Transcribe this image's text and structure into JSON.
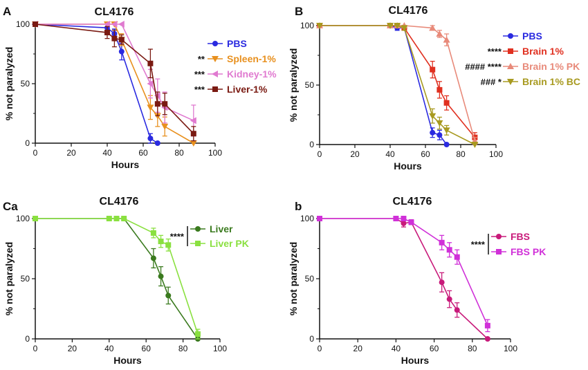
{
  "chart_data": [
    {
      "type": "line",
      "panel_label": "A",
      "title": "CL4176",
      "xlabel": "Hours",
      "ylabel": "% not paralyzed",
      "xlim": [
        0,
        100
      ],
      "ylim": [
        0,
        100
      ],
      "xticks": [
        0,
        20,
        40,
        60,
        80,
        100
      ],
      "yticks": [
        0,
        50,
        100
      ],
      "legend_position": "right",
      "series": [
        {
          "name": "PBS",
          "color": "#2a2ae0",
          "marker": "circle",
          "significance": "",
          "x": [
            0,
            40,
            44,
            48,
            64,
            68
          ],
          "y": [
            100,
            97,
            92,
            77,
            4,
            0
          ],
          "err": [
            0,
            3,
            4,
            7,
            4,
            0
          ]
        },
        {
          "name": "Spleen-1%",
          "color": "#e8901e",
          "marker": "tri-down",
          "significance": "**",
          "x": [
            0,
            40,
            44,
            48,
            64,
            68,
            72,
            88
          ],
          "y": [
            100,
            100,
            100,
            87,
            30,
            23,
            14,
            0
          ],
          "err": [
            0,
            0,
            0,
            5,
            10,
            9,
            8,
            0
          ]
        },
        {
          "name": "Kidney-1%",
          "color": "#e07ad0",
          "marker": "tri-left",
          "significance": "***",
          "x": [
            0,
            40,
            44,
            48,
            64,
            68,
            72,
            88
          ],
          "y": [
            100,
            100,
            100,
            100,
            50,
            40,
            30,
            19
          ],
          "err": [
            0,
            0,
            0,
            0,
            12,
            14,
            13,
            13
          ]
        },
        {
          "name": "Liver-1%",
          "color": "#7a1a12",
          "marker": "square",
          "significance": "***",
          "x": [
            0,
            40,
            44,
            48,
            64,
            68,
            72,
            88
          ],
          "y": [
            100,
            93,
            88,
            87,
            67,
            33,
            33,
            8
          ],
          "err": [
            0,
            5,
            7,
            4,
            12,
            10,
            9,
            6
          ]
        }
      ]
    },
    {
      "type": "line",
      "panel_label": "B",
      "title": "CL4176",
      "xlabel": "Hours",
      "ylabel": "% not paralyzed",
      "xlim": [
        0,
        100
      ],
      "ylim": [
        0,
        100
      ],
      "xticks": [
        0,
        20,
        40,
        60,
        80,
        100
      ],
      "yticks": [
        0,
        50,
        100
      ],
      "legend_position": "right",
      "series": [
        {
          "name": "PBS",
          "color": "#2a2ae0",
          "marker": "circle",
          "significance": "",
          "x": [
            0,
            40,
            44,
            48,
            64,
            68,
            72
          ],
          "y": [
            100,
            100,
            98,
            98,
            10,
            8,
            0
          ],
          "err": [
            0,
            0,
            2,
            2,
            4,
            4,
            0
          ]
        },
        {
          "name": "Brain 1%",
          "color": "#e03020",
          "marker": "square",
          "significance": "****",
          "x": [
            0,
            40,
            44,
            48,
            64,
            68,
            72,
            88
          ],
          "y": [
            100,
            100,
            100,
            98,
            63,
            46,
            35,
            6
          ],
          "err": [
            0,
            0,
            0,
            2,
            7,
            7,
            6,
            4
          ]
        },
        {
          "name": "Brain 1% PK",
          "color": "#e88a7a",
          "marker": "tri-up",
          "significance": "####  ****",
          "x": [
            0,
            40,
            44,
            48,
            64,
            68,
            72,
            88
          ],
          "y": [
            100,
            100,
            100,
            100,
            98,
            93,
            88,
            3
          ],
          "err": [
            0,
            0,
            0,
            0,
            2,
            3,
            5,
            3
          ]
        },
        {
          "name": "Brain 1% BC",
          "color": "#a89a20",
          "marker": "tri-down",
          "significance": "###  *",
          "x": [
            0,
            40,
            44,
            48,
            64,
            68,
            72,
            88
          ],
          "y": [
            100,
            100,
            100,
            98,
            24,
            18,
            12,
            0
          ],
          "err": [
            0,
            0,
            0,
            2,
            6,
            5,
            4,
            0
          ]
        }
      ]
    },
    {
      "type": "line",
      "panel_label": "Ca",
      "title": "CL4176",
      "xlabel": "Hours",
      "ylabel": "% not paralyzed",
      "xlim": [
        0,
        100
      ],
      "ylim": [
        0,
        100
      ],
      "xticks": [
        0,
        20,
        40,
        60,
        80,
        100
      ],
      "yticks": [
        0,
        50,
        100
      ],
      "legend_position": "right",
      "bracket_label": "****",
      "series": [
        {
          "name": "Liver",
          "color": "#3a7a1e",
          "marker": "circle",
          "significance": "",
          "x": [
            0,
            40,
            44,
            48,
            64,
            68,
            72,
            88
          ],
          "y": [
            100,
            100,
            100,
            100,
            67,
            52,
            36,
            0
          ],
          "err": [
            0,
            0,
            0,
            0,
            8,
            8,
            7,
            0
          ]
        },
        {
          "name": "Liver PK",
          "color": "#8ae040",
          "marker": "square",
          "significance": "",
          "x": [
            0,
            40,
            44,
            48,
            64,
            68,
            72,
            88
          ],
          "y": [
            100,
            100,
            100,
            100,
            88,
            81,
            78,
            4
          ],
          "err": [
            0,
            0,
            0,
            0,
            4,
            5,
            5,
            4
          ]
        }
      ]
    },
    {
      "type": "line",
      "panel_label": "b",
      "title": "CL4176",
      "xlabel": "Hours",
      "ylabel": "% not paralyzed",
      "xlim": [
        0,
        100
      ],
      "ylim": [
        0,
        100
      ],
      "xticks": [
        0,
        20,
        40,
        60,
        80,
        100
      ],
      "yticks": [
        0,
        50,
        100
      ],
      "legend_position": "right",
      "bracket_label": "****",
      "series": [
        {
          "name": "FBS",
          "color": "#c81a7a",
          "marker": "circle",
          "significance": "",
          "x": [
            0,
            40,
            44,
            48,
            64,
            68,
            72,
            88
          ],
          "y": [
            100,
            100,
            96,
            97,
            47,
            33,
            24,
            0
          ],
          "err": [
            0,
            0,
            3,
            2,
            8,
            7,
            6,
            0
          ]
        },
        {
          "name": "FBS PK",
          "color": "#d030d8",
          "marker": "square",
          "significance": "",
          "x": [
            0,
            40,
            44,
            48,
            64,
            68,
            72,
            88
          ],
          "y": [
            100,
            100,
            100,
            97,
            80,
            74,
            68,
            11
          ],
          "err": [
            0,
            0,
            0,
            2,
            6,
            6,
            6,
            5
          ]
        }
      ]
    }
  ]
}
